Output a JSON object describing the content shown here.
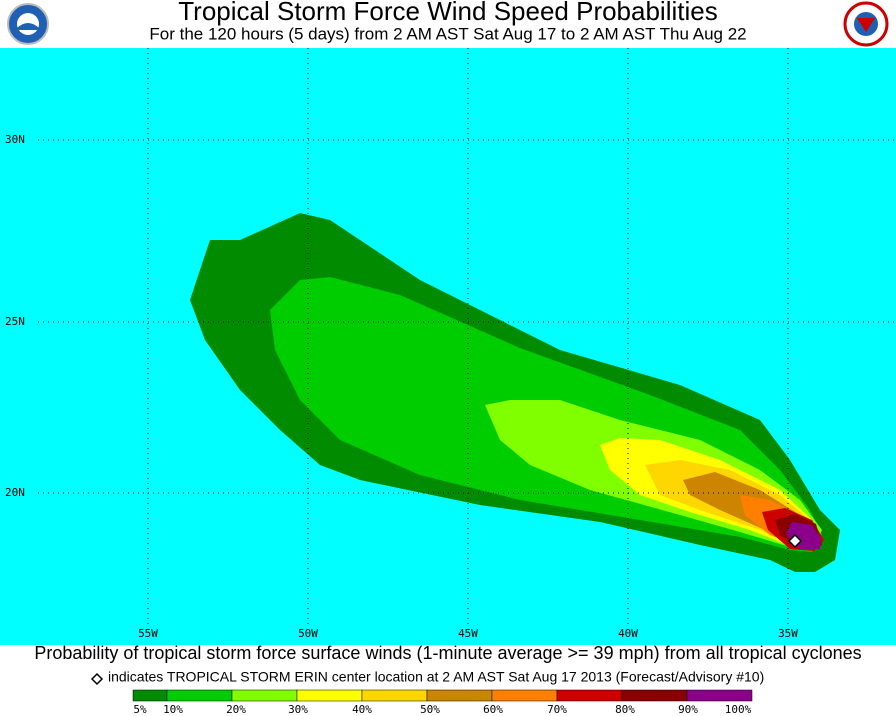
{
  "header": {
    "title": "Tropical Storm Force Wind Speed Probabilities",
    "subtitle": "For the 120 hours (5 days) from 2 AM AST Sat Aug 17 to 2 AM AST Thu Aug 22"
  },
  "map": {
    "lat_labels": [
      "30N",
      "25N",
      "20N"
    ],
    "lon_labels": [
      "55W",
      "50W",
      "45W",
      "40W",
      "35W"
    ]
  },
  "footer": {
    "caption": "Probability of tropical storm force surface winds (1-minute average >= 39 mph) from all tropical cyclones",
    "note": "indicates TROPICAL STORM ERIN center location at 2 AM AST Sat Aug 17 2013 (Forecast/Advisory #10)"
  },
  "legend": {
    "labels": [
      "5%",
      "10%",
      "20%",
      "30%",
      "40%",
      "50%",
      "60%",
      "70%",
      "80%",
      "90%",
      "100%"
    ],
    "colors": [
      "#008b00",
      "#00cd00",
      "#7fff00",
      "#ffff00",
      "#ffd700",
      "#cd8500",
      "#ff7f00",
      "#cd0000",
      "#8b0000",
      "#8b008b"
    ]
  }
}
